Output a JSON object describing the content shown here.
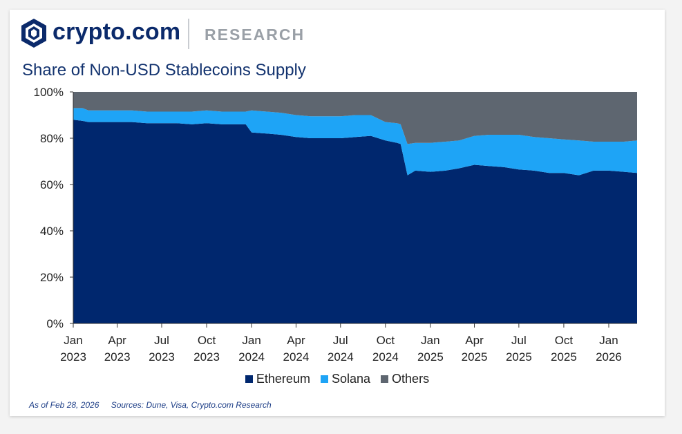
{
  "header": {
    "brand": "crypto.com",
    "sub_brand": "RESEARCH"
  },
  "footer": {
    "as_of": "As of Feb 28, 2026",
    "sources": "Sources: Dune, Visa, Crypto.com Research"
  },
  "colors": {
    "ethereum": "#00276e",
    "solana": "#1ea4f6",
    "others": "#5e6670",
    "brand": "#0b2a6b"
  },
  "chart_data": {
    "type": "area",
    "stacked": true,
    "percent": true,
    "title": "Share of Non-USD Stablecoins Supply",
    "xlabel": "",
    "ylabel": "",
    "ylim": [
      0,
      100
    ],
    "y_ticks": [
      "0%",
      "20%",
      "40%",
      "60%",
      "80%",
      "100%"
    ],
    "x_ticks": [
      {
        "date": "2023-01-01",
        "label": [
          "Jan",
          "2023"
        ]
      },
      {
        "date": "2023-04-01",
        "label": [
          "Apr",
          "2023"
        ]
      },
      {
        "date": "2023-07-01",
        "label": [
          "Jul",
          "2023"
        ]
      },
      {
        "date": "2023-10-01",
        "label": [
          "Oct",
          "2023"
        ]
      },
      {
        "date": "2024-01-01",
        "label": [
          "Jan",
          "2024"
        ]
      },
      {
        "date": "2024-04-01",
        "label": [
          "Apr",
          "2024"
        ]
      },
      {
        "date": "2024-07-01",
        "label": [
          "Jul",
          "2024"
        ]
      },
      {
        "date": "2024-10-01",
        "label": [
          "Oct",
          "2024"
        ]
      },
      {
        "date": "2025-01-01",
        "label": [
          "Jan",
          "2025"
        ]
      },
      {
        "date": "2025-04-01",
        "label": [
          "Apr",
          "2025"
        ]
      },
      {
        "date": "2025-07-01",
        "label": [
          "Jul",
          "2025"
        ]
      },
      {
        "date": "2025-10-01",
        "label": [
          "Oct",
          "2025"
        ]
      },
      {
        "date": "2026-01-01",
        "label": [
          "Jan",
          "2026"
        ]
      }
    ],
    "xlim": [
      "2023-01-01",
      "2026-02-28"
    ],
    "legend_position": "bottom",
    "x": [
      "2023-01-01",
      "2023-01-20",
      "2023-02-01",
      "2023-03-01",
      "2023-04-01",
      "2023-05-01",
      "2023-06-01",
      "2023-07-01",
      "2023-08-01",
      "2023-09-01",
      "2023-10-01",
      "2023-11-01",
      "2023-12-01",
      "2023-12-20",
      "2024-01-01",
      "2024-02-01",
      "2024-03-01",
      "2024-04-01",
      "2024-05-01",
      "2024-06-01",
      "2024-07-01",
      "2024-08-01",
      "2024-09-01",
      "2024-10-01",
      "2024-10-25",
      "2024-11-01",
      "2024-11-15",
      "2024-12-01",
      "2025-01-01",
      "2025-02-01",
      "2025-03-01",
      "2025-04-01",
      "2025-05-01",
      "2025-06-01",
      "2025-07-01",
      "2025-08-01",
      "2025-09-01",
      "2025-10-01",
      "2025-11-01",
      "2025-12-01",
      "2026-01-01",
      "2026-02-01",
      "2026-02-28"
    ],
    "series": [
      {
        "name": "Ethereum",
        "values": [
          88,
          87.5,
          87,
          87,
          87,
          87,
          86.5,
          86.5,
          86.5,
          86,
          86.5,
          86,
          86,
          86,
          82.5,
          82,
          81.5,
          80.5,
          80,
          80,
          80,
          80.5,
          81,
          79,
          78,
          77.5,
          64,
          66,
          65.5,
          66,
          67,
          68.5,
          68,
          67.5,
          66.5,
          66,
          65,
          65,
          64,
          66,
          66,
          65.5,
          65
        ]
      },
      {
        "name": "Solana",
        "values": [
          5,
          5.5,
          5,
          5,
          5,
          5,
          5,
          5,
          5,
          5.5,
          5.5,
          5.5,
          5.5,
          5.5,
          9.5,
          9.5,
          9.5,
          9.5,
          9.5,
          9.5,
          9.5,
          9.5,
          9,
          8,
          8.5,
          8.5,
          13.5,
          12,
          12.5,
          12.5,
          12,
          12.5,
          13.5,
          14,
          15,
          14.5,
          15,
          14.5,
          15,
          12.5,
          12.5,
          13,
          14
        ]
      },
      {
        "name": "Others",
        "values": [
          7,
          7,
          8,
          8,
          8,
          8,
          8.5,
          8.5,
          8.5,
          8.5,
          8,
          8.5,
          8.5,
          8.5,
          8,
          8.5,
          9,
          10,
          10.5,
          10.5,
          10.5,
          10,
          10,
          13,
          13.5,
          14,
          22.5,
          22,
          22,
          21.5,
          21,
          19,
          18.5,
          18.5,
          18.5,
          19.5,
          20,
          20.5,
          21,
          21.5,
          21.5,
          21.5,
          21
        ]
      }
    ]
  }
}
